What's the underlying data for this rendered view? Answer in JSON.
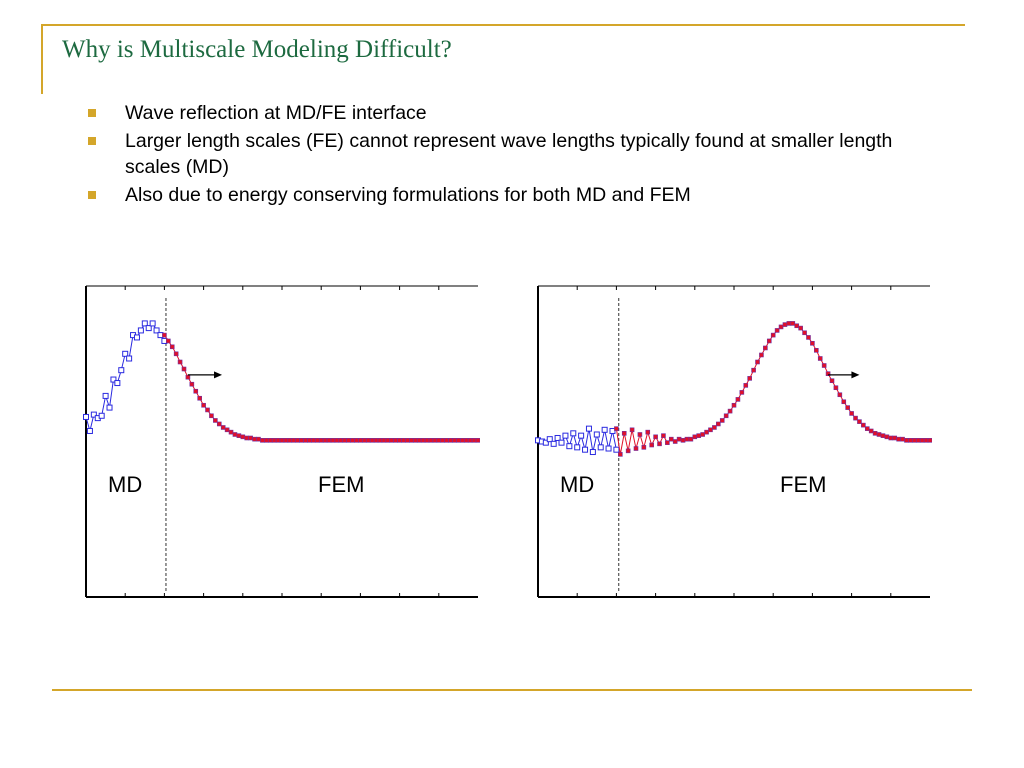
{
  "slide": {
    "title": "Why is Multiscale Modeling Difficult?",
    "bullets": [
      "Wave reflection at MD/FE interface",
      "Larger length scales (FE) cannot represent wave lengths typically found at smaller length scales (MD)",
      "Also due to energy conserving formulations for both MD and FEM"
    ],
    "accent_color": "#d4a62a",
    "title_color": "#1d6a40"
  },
  "chart_data": [
    {
      "type": "line",
      "title": "",
      "xlim": [
        0,
        100
      ],
      "ylim": [
        -1.34,
        1.32
      ],
      "interface_x": 20.4,
      "region_labels": {
        "left": "MD",
        "right": "FEM"
      },
      "x_ticks": [
        10,
        20,
        30,
        40,
        50,
        60,
        70,
        80,
        90
      ],
      "series": [
        {
          "name": "MD",
          "color": "#2a2ae0",
          "x_start": 0,
          "x_step": 1,
          "y": [
            0.2,
            0.08,
            0.22,
            0.19,
            0.21,
            0.38,
            0.28,
            0.52,
            0.49,
            0.6,
            0.74,
            0.7,
            0.9,
            0.88,
            0.94,
            1.0,
            0.96,
            1.0,
            0.94,
            0.9,
            0.85
          ]
        },
        {
          "name": "FEM",
          "color": "#e0102a",
          "x_start": 20,
          "x_step": 1,
          "y": [
            0.9,
            0.85,
            0.8,
            0.74,
            0.67,
            0.61,
            0.54,
            0.48,
            0.42,
            0.36,
            0.3,
            0.26,
            0.21,
            0.17,
            0.14,
            0.11,
            0.09,
            0.07,
            0.05,
            0.04,
            0.03,
            0.02,
            0.02,
            0.01,
            0.01,
            0,
            0,
            0,
            0,
            0,
            0,
            0,
            0,
            0,
            0,
            0,
            0,
            0,
            0,
            0,
            0,
            0,
            0,
            0,
            0,
            0,
            0,
            0,
            0,
            0,
            0,
            0,
            0,
            0,
            0,
            0,
            0,
            0,
            0,
            0,
            0,
            0,
            0,
            0,
            0,
            0,
            0,
            0,
            0,
            0,
            0,
            0,
            0,
            0,
            0,
            0,
            0,
            0,
            0,
            0,
            0
          ]
        }
      ]
    },
    {
      "type": "line",
      "title": "",
      "xlim": [
        0,
        100
      ],
      "ylim": [
        -1.34,
        1.32
      ],
      "interface_x": 20.6,
      "region_labels": {
        "left": "MD",
        "right": "FEM"
      },
      "x_ticks": [
        10,
        20,
        30,
        40,
        50,
        60,
        70,
        80,
        90
      ],
      "series": [
        {
          "name": "MD",
          "color": "#2a2ae0",
          "x_start": 0,
          "x_step": 1,
          "y": [
            0,
            -0.01,
            -0.02,
            0.01,
            -0.03,
            0.02,
            -0.02,
            0.04,
            -0.05,
            0.06,
            -0.06,
            0.04,
            -0.08,
            0.1,
            -0.1,
            0.05,
            -0.06,
            0.09,
            -0.07,
            0.08,
            -0.08
          ]
        },
        {
          "name": "FEM",
          "color": "#e0102a",
          "x_start": 20,
          "x_step": 1,
          "y": [
            0.1,
            -0.12,
            0.06,
            -0.09,
            0.09,
            -0.07,
            0.05,
            -0.06,
            0.07,
            -0.04,
            0.03,
            -0.03,
            0.04,
            -0.02,
            0.01,
            -0.01,
            0.01,
            0,
            0.01,
            0.01,
            0.03,
            0.04,
            0.05,
            0.07,
            0.09,
            0.11,
            0.14,
            0.17,
            0.21,
            0.25,
            0.3,
            0.35,
            0.41,
            0.47,
            0.53,
            0.6,
            0.67,
            0.73,
            0.79,
            0.85,
            0.9,
            0.94,
            0.97,
            0.99,
            1.0,
            1.0,
            0.98,
            0.96,
            0.92,
            0.88,
            0.83,
            0.77,
            0.7,
            0.64,
            0.57,
            0.51,
            0.45,
            0.39,
            0.33,
            0.28,
            0.23,
            0.19,
            0.16,
            0.13,
            0.1,
            0.08,
            0.06,
            0.05,
            0.04,
            0.03,
            0.02,
            0.02,
            0.01,
            0.01,
            0,
            0,
            0,
            0,
            0,
            0,
            0
          ]
        }
      ]
    }
  ]
}
